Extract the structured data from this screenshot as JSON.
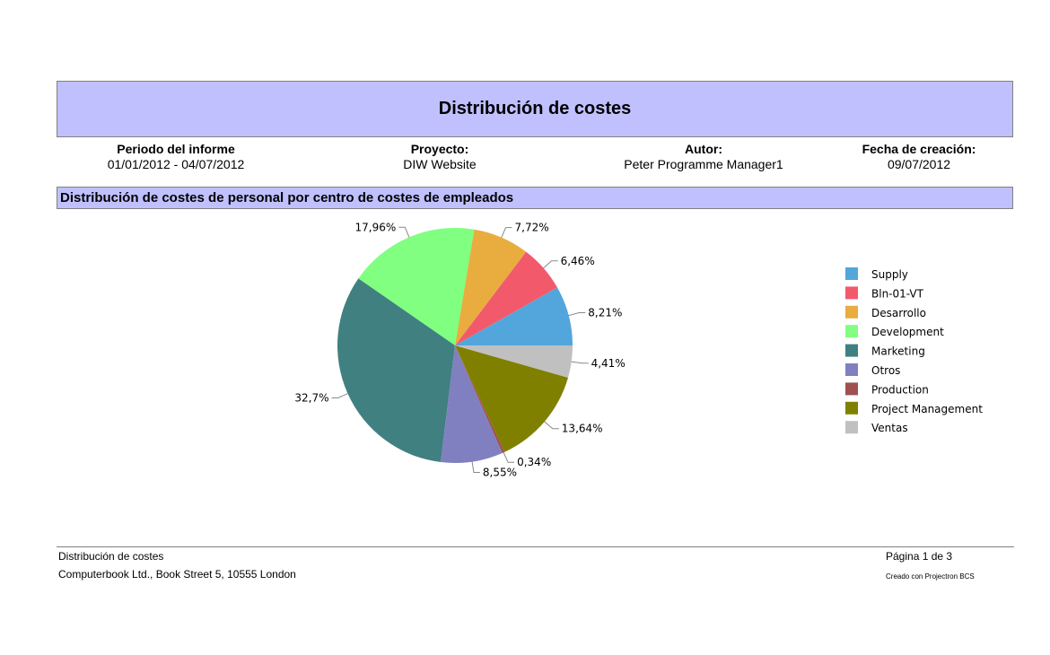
{
  "report": {
    "title": "Distribución de costes",
    "meta": [
      {
        "label": "Periodo del informe",
        "value": "01/01/2012 - 04/07/2012"
      },
      {
        "label": "Proyecto:",
        "value": "DIW Website"
      },
      {
        "label": "Autor:",
        "value": "Peter Programme Manager1"
      },
      {
        "label": "Fecha de creación:",
        "value": "09/07/2012"
      }
    ],
    "section_title": "Distribución de costes de personal por centro de costes de empleados"
  },
  "chart_data": {
    "type": "pie",
    "start_angle_deg": 0,
    "direction": "counterclockwise",
    "slices": [
      {
        "name": "Supply",
        "value": 8.21,
        "label": "8,21%",
        "color": "#52a6dc"
      },
      {
        "name": "Bln-01-VT",
        "value": 6.46,
        "label": "6,46%",
        "color": "#f25a6c"
      },
      {
        "name": "Desarrollo",
        "value": 7.72,
        "label": "7,72%",
        "color": "#e8ad3e"
      },
      {
        "name": "Development",
        "value": 17.96,
        "label": "17,96%",
        "color": "#80ff80"
      },
      {
        "name": "Marketing",
        "value": 32.7,
        "label": "32,7%",
        "color": "#408080"
      },
      {
        "name": "Otros",
        "value": 8.55,
        "label": "8,55%",
        "color": "#8080c0"
      },
      {
        "name": "Production",
        "value": 0.34,
        "label": "0,34%",
        "color": "#a05050"
      },
      {
        "name": "Project Management",
        "value": 13.64,
        "label": "13,64%",
        "color": "#808000"
      },
      {
        "name": "Ventas",
        "value": 4.41,
        "label": "4,41%",
        "color": "#c0c0c0"
      }
    ],
    "legend_position": "right"
  },
  "footer": {
    "left_top": "Distribución de costes",
    "left_bottom": "Computerbook Ltd., Book Street 5, 10555 London",
    "right_top": "Página 1 de 3",
    "right_bottom": "Creado con Projectron BCS"
  }
}
